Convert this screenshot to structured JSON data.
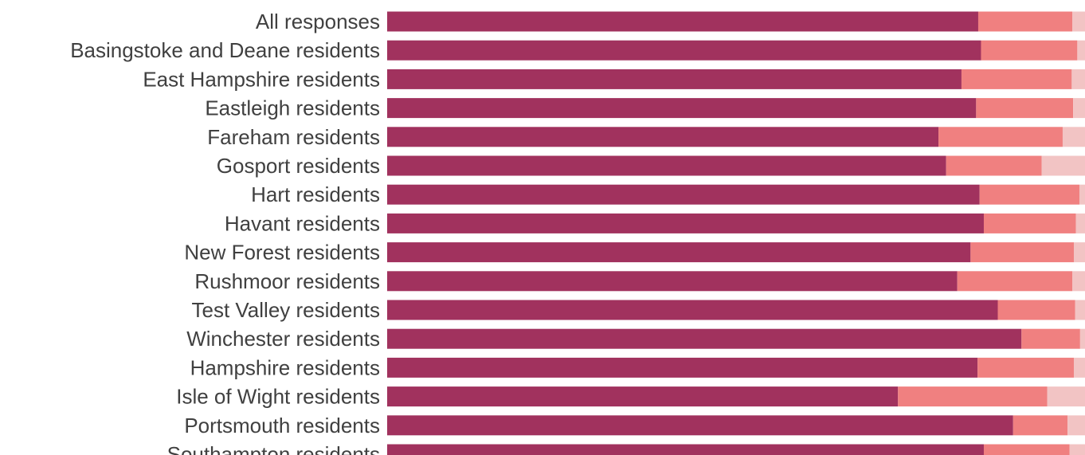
{
  "chart_data": {
    "type": "bar",
    "orientation": "horizontal",
    "stacked": true,
    "percent_stacked": true,
    "title": "",
    "xlabel": "",
    "ylabel": "",
    "xlim": [
      0,
      100
    ],
    "grid": false,
    "legend": "none",
    "categories": [
      "All responses",
      "Basingstoke and Deane residents",
      "East Hampshire residents",
      "Eastleigh residents",
      "Fareham residents",
      "Gosport residents",
      "Hart residents",
      "Havant residents",
      "New Forest residents",
      "Rushmoor residents",
      "Test Valley residents",
      "Winchester residents",
      "Hampshire residents",
      "Isle of Wight residents",
      "Portsmouth residents",
      "Southampton residents"
    ],
    "series": [
      {
        "color": "#a1325e",
        "values": [
          84.7,
          85.1,
          82.3,
          84.4,
          79.0,
          80.1,
          84.9,
          85.5,
          83.6,
          81.7,
          87.5,
          90.9,
          84.6,
          73.2,
          89.7,
          85.5
        ]
      },
      {
        "color": "#f08080",
        "values": [
          13.5,
          13.8,
          15.8,
          13.9,
          17.8,
          13.7,
          14.3,
          13.2,
          14.8,
          16.5,
          11.1,
          8.4,
          13.8,
          21.4,
          7.8,
          12.3
        ]
      },
      {
        "color": "#f2c4c4",
        "values": [
          1.8,
          1.1,
          1.9,
          1.7,
          3.2,
          6.2,
          0.8,
          1.3,
          1.6,
          1.8,
          1.4,
          0.7,
          1.6,
          5.4,
          2.5,
          2.2
        ]
      }
    ]
  }
}
